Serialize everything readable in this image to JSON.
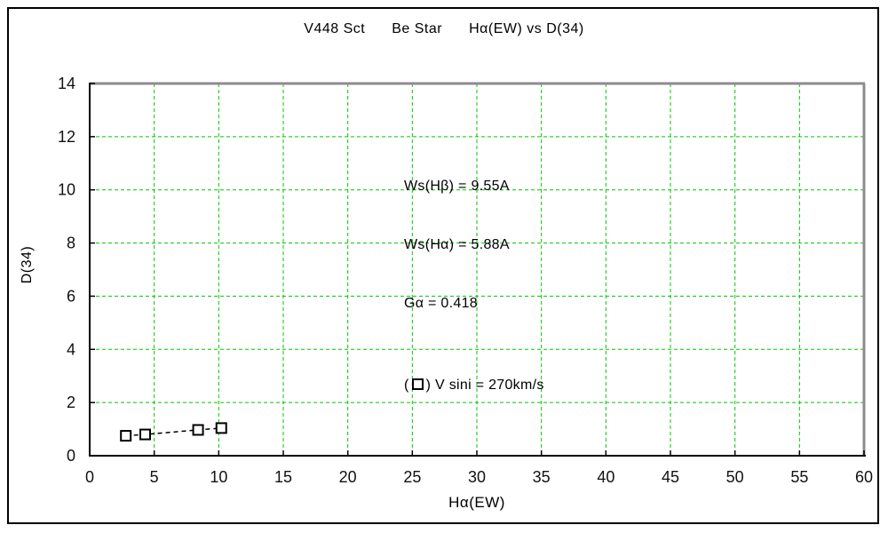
{
  "chart_data": {
    "type": "scatter",
    "title": "V448 Sct    Be Star    Hα(EW) vs D(34)",
    "title_parts": [
      "V448 Sct",
      "Be Star",
      "Hα(EW) vs D(34)"
    ],
    "xlabel": "Hα(EW)",
    "ylabel": "D(34)",
    "xlim": [
      0,
      60
    ],
    "xtick_step": 5,
    "ylim": [
      0,
      14
    ],
    "ytick_step": 2,
    "grid": true,
    "grid_style": "dashed",
    "legend_position": "inside-top-center",
    "colors": {
      "grid": "#00c800",
      "axis": "#000000",
      "plot_border": "#8c8c8c",
      "marker": "#000000",
      "background": "#ffffff"
    },
    "annotations": [
      "Ws(Hβ) = 9.55A",
      "Ws(Hα) = 5.88A",
      "Gα = 0.418"
    ],
    "legend": {
      "prefix": "(",
      "suffix": ")",
      "marker": "open-square",
      "label": " V sini = 270km/s"
    },
    "series": [
      {
        "name": "V sini = 270km/s",
        "marker": "open-square",
        "line_style": "dashed",
        "points": [
          [
            2.8,
            0.75
          ],
          [
            4.3,
            0.8
          ],
          [
            8.4,
            0.97
          ],
          [
            10.2,
            1.04
          ]
        ]
      }
    ]
  }
}
